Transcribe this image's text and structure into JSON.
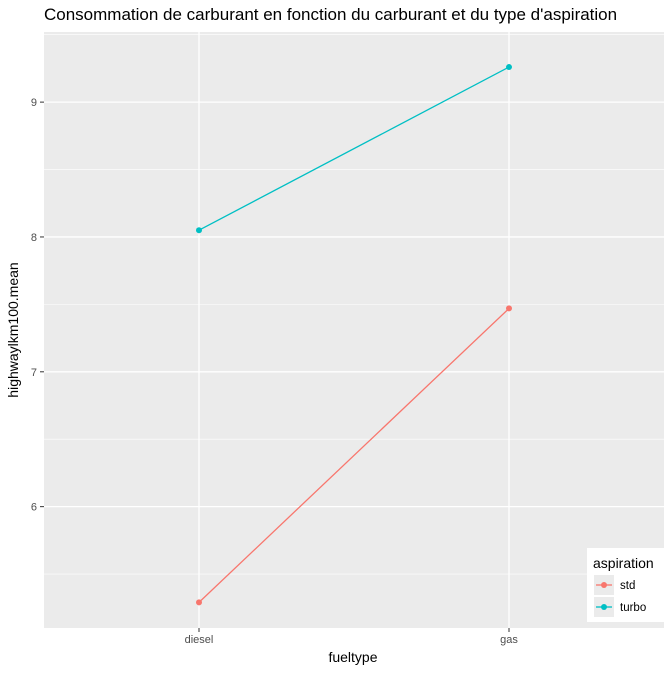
{
  "chart_data": {
    "type": "line",
    "title": "Consommation de carburant en fonction du carburant et du type d'aspiration",
    "xlabel": "fueltype",
    "ylabel": "highwaylkm100.mean",
    "categories": [
      "diesel",
      "gas"
    ],
    "ylim": [
      5.1,
      9.52
    ],
    "yticks": [
      6,
      7,
      8,
      9
    ],
    "grid": true,
    "legend": {
      "title": "aspiration",
      "position": "bottom-right"
    },
    "series": [
      {
        "name": "std",
        "color": "#F8766D",
        "values": [
          5.29,
          7.47
        ]
      },
      {
        "name": "turbo",
        "color": "#00BFC4",
        "values": [
          8.05,
          9.26
        ]
      }
    ]
  }
}
